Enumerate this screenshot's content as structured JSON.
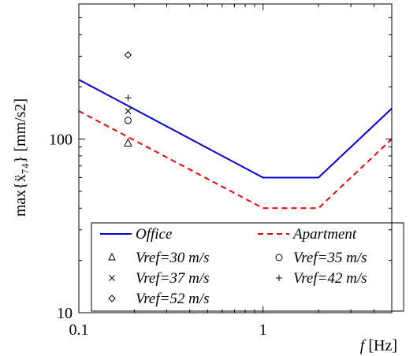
{
  "chart_data": {
    "type": "line",
    "xscale": "log",
    "yscale": "log",
    "xlim": [
      0.1,
      5
    ],
    "ylim": [
      10,
      600
    ],
    "xticks": [
      {
        "value": 0.1,
        "label": "0.1"
      },
      {
        "value": 1,
        "label": "1"
      }
    ],
    "yticks": [
      {
        "value": 10,
        "label": "10"
      },
      {
        "value": 100,
        "label": "100"
      }
    ],
    "xlabel": "f",
    "xlabel_unit": "[Hz]",
    "ylabel": "max{ẍ₇₄}",
    "ylabel_unit": "[mm/s2]",
    "grid": false,
    "legend_position": "bottom-center",
    "series": [
      {
        "name": "Office",
        "kind": "line",
        "color": "#0000cc",
        "dash": "solid",
        "x": [
          0.1,
          1,
          2,
          5
        ],
        "y": [
          220,
          60,
          60,
          150
        ]
      },
      {
        "name": "Apartment",
        "kind": "line",
        "color": "#ee0000",
        "dash": "dashed",
        "x": [
          0.1,
          1,
          2,
          5
        ],
        "y": [
          145,
          40,
          40,
          100
        ]
      },
      {
        "name": "Vref=30 m/s",
        "kind": "marker",
        "marker": "triangle",
        "x": [
          0.185
        ],
        "y": [
          95
        ]
      },
      {
        "name": "Vref=35 m/s",
        "kind": "marker",
        "marker": "circle",
        "x": [
          0.185
        ],
        "y": [
          128
        ]
      },
      {
        "name": "Vref=37 m/s",
        "kind": "marker",
        "marker": "x",
        "x": [
          0.185
        ],
        "y": [
          145
        ]
      },
      {
        "name": "Vref=42 m/s",
        "kind": "marker",
        "marker": "plus",
        "x": [
          0.185
        ],
        "y": [
          173
        ]
      },
      {
        "name": "Vref=52 m/s",
        "kind": "marker",
        "marker": "diamond",
        "x": [
          0.185
        ],
        "y": [
          305
        ]
      }
    ]
  }
}
